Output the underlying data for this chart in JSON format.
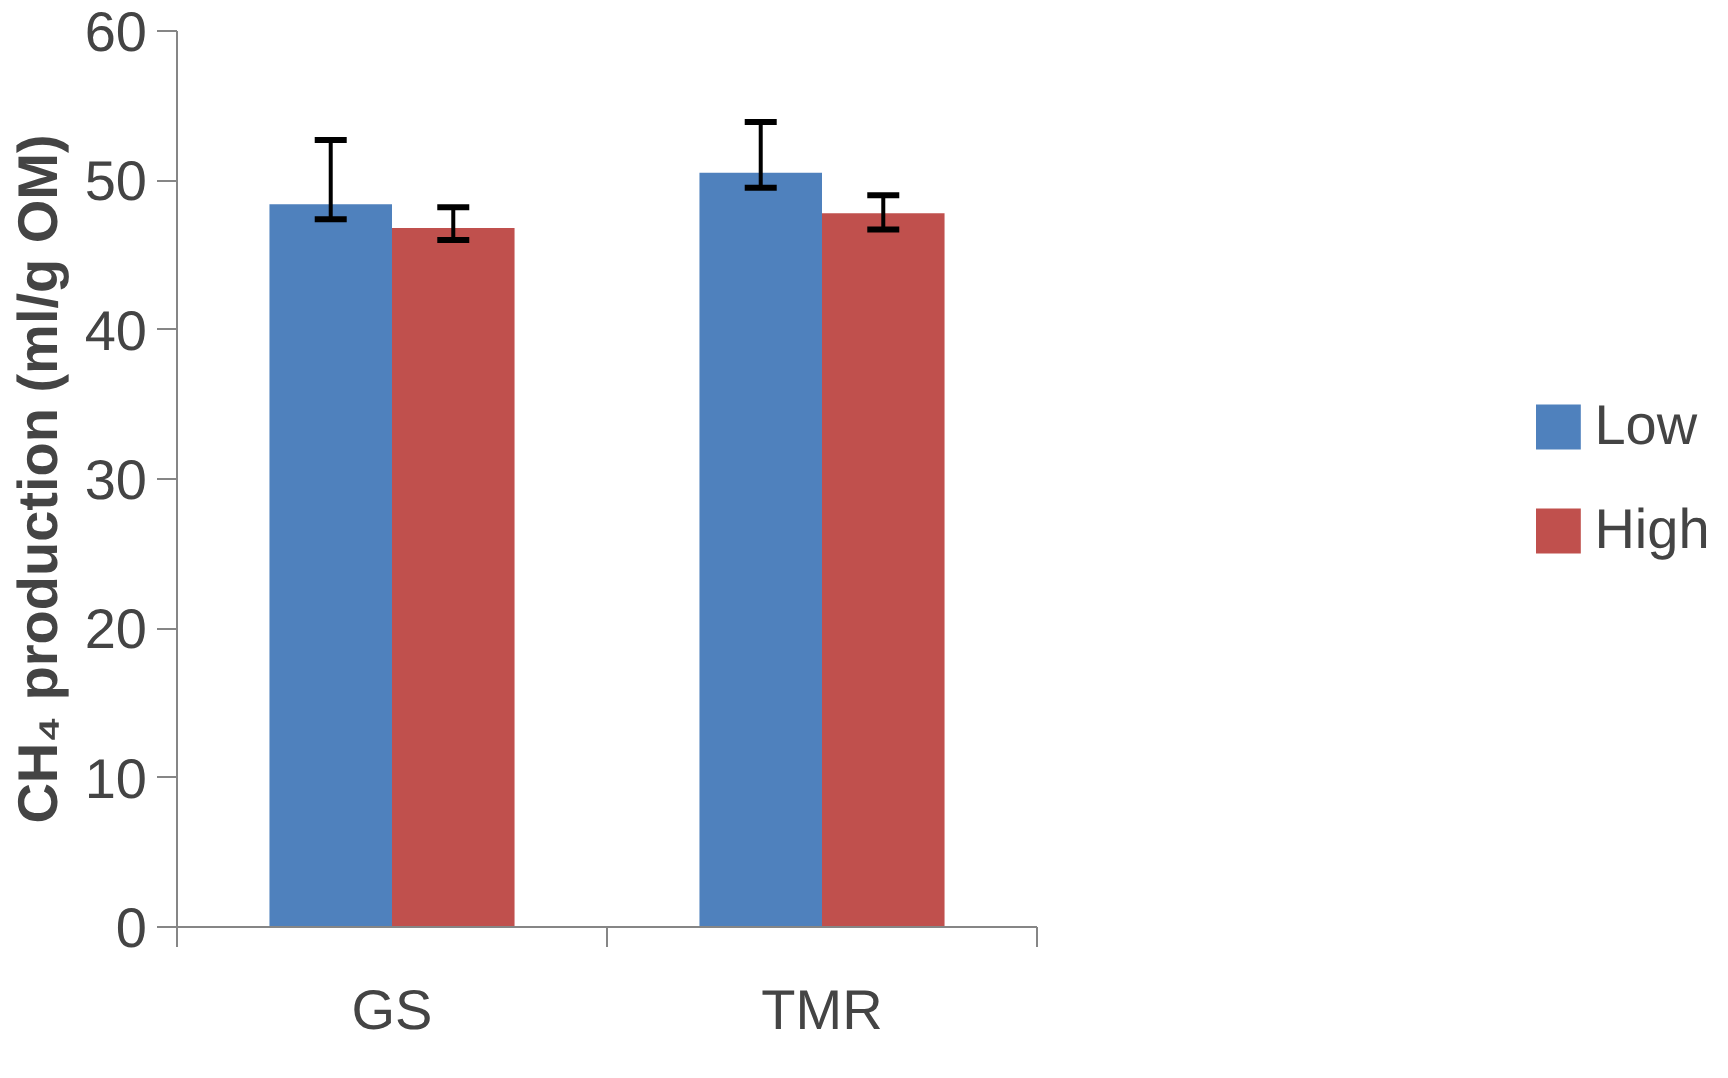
{
  "chart_data": {
    "type": "bar",
    "ylabel": "CH₄ production (ml/g OM)",
    "categories": [
      "GS",
      "TMR"
    ],
    "series": [
      {
        "name": "Low",
        "color": "#4f81bd",
        "values": [
          48.4,
          50.5
        ],
        "errors": [
          [
            47.4,
            52.7
          ],
          [
            49.5,
            53.9
          ]
        ]
      },
      {
        "name": "High",
        "color": "#c0504d",
        "values": [
          46.8,
          47.8
        ],
        "errors": [
          [
            46.0,
            48.2
          ],
          [
            46.7,
            49.0
          ]
        ]
      }
    ],
    "ylim": [
      0,
      60
    ],
    "yticks": [
      0,
      10,
      20,
      30,
      40,
      50,
      60
    ],
    "grid": false,
    "legend": "right"
  }
}
